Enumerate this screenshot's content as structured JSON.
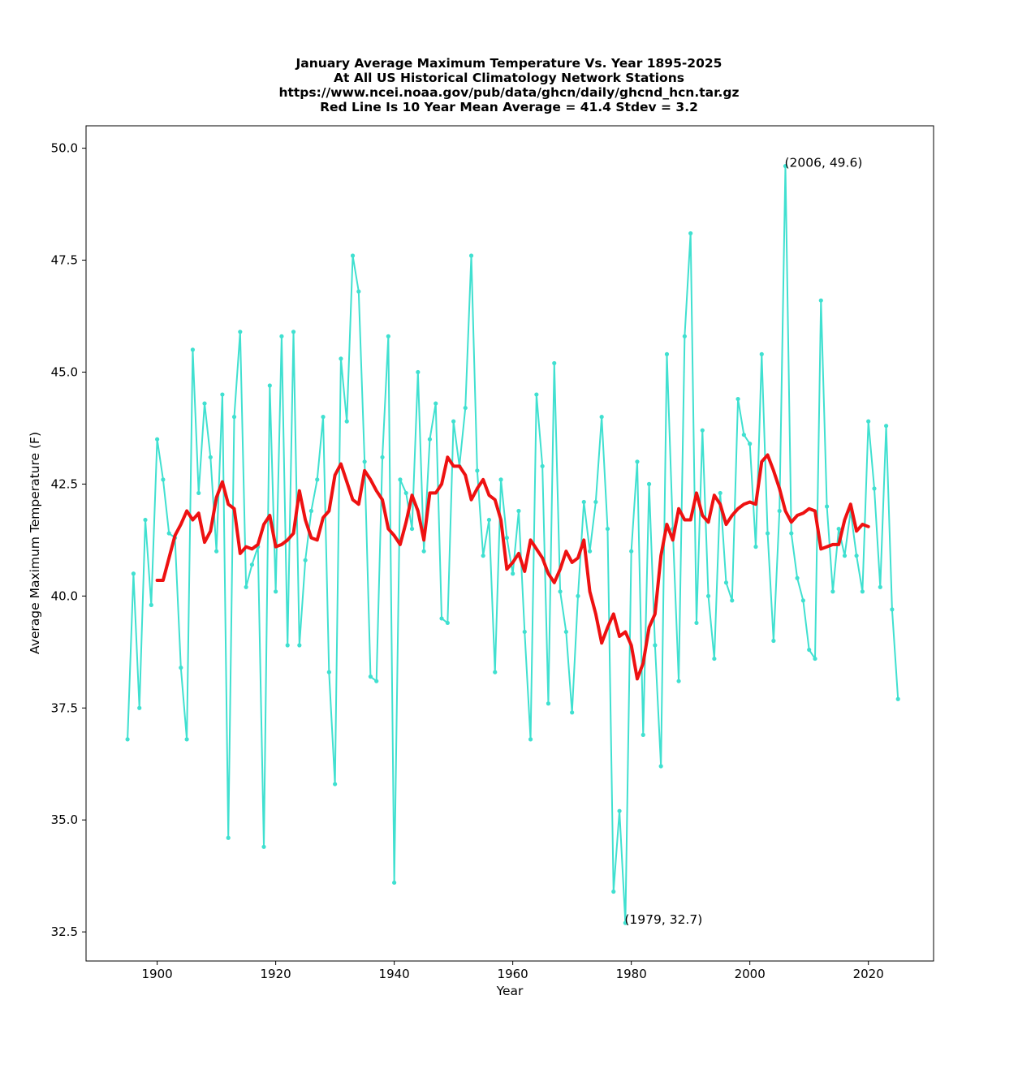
{
  "chart_data": {
    "type": "line",
    "title_lines": [
      "January Average Maximum Temperature Vs. Year 1895-2025",
      "At All US Historical Climatology Network Stations",
      "https://www.ncei.noaa.gov/pub/data/ghcn/daily/ghcnd_hcn.tar.gz",
      "Red Line Is 10 Year Mean  Average = 41.4 Stdev = 3.2"
    ],
    "xlabel": "Year",
    "ylabel": "Average Maximum Temperature (F)",
    "xlim": [
      1888,
      2031
    ],
    "ylim": [
      31.85,
      50.5
    ],
    "xticks": [
      1900,
      1920,
      1940,
      1960,
      1980,
      2000,
      2020
    ],
    "yticks": [
      32.5,
      35.0,
      37.5,
      40.0,
      42.5,
      45.0,
      47.5,
      50.0
    ],
    "grid": false,
    "colors": {
      "annual": "#40e0d0",
      "mean": "#ee1111"
    },
    "series": [
      {
        "x_start": 1895,
        "values": [
          36.8,
          40.5,
          37.5,
          41.7,
          39.8,
          43.5,
          42.6,
          41.4,
          41.3,
          38.4,
          36.8,
          45.5,
          42.3,
          44.3,
          43.1,
          41.0,
          44.5,
          34.6,
          44.0,
          45.9,
          40.2,
          40.7,
          41.1,
          34.4,
          44.7,
          40.1,
          45.8,
          38.9,
          45.9,
          38.9,
          40.8,
          41.9,
          42.6,
          44.0,
          38.3,
          35.8,
          45.3,
          43.9,
          47.6,
          46.8,
          43.0,
          38.2,
          38.1,
          43.1,
          45.8,
          33.6,
          42.6,
          42.3,
          41.5,
          45.0,
          41.0,
          43.5,
          44.3,
          39.5,
          39.4,
          43.9,
          42.9,
          44.2,
          47.6,
          42.8,
          40.9,
          41.7,
          38.3,
          42.6,
          41.3,
          40.5,
          41.9,
          39.2,
          36.8,
          44.5,
          42.9,
          37.6,
          45.2,
          40.1,
          39.2,
          37.4,
          40.0,
          42.1,
          41.0,
          42.1,
          44.0,
          41.5,
          33.4,
          35.2,
          32.7,
          41.0,
          43.0,
          36.9,
          42.5,
          38.9,
          36.2,
          45.4,
          41.5,
          38.1,
          45.8,
          48.1,
          39.4,
          43.7,
          40.0,
          38.6,
          42.3,
          40.3,
          39.9,
          44.4,
          43.6,
          43.4,
          41.1,
          45.4,
          41.4,
          39.0,
          41.9,
          49.6,
          41.4,
          40.4,
          39.9,
          38.8,
          38.6,
          46.6,
          42.0,
          40.1,
          41.5,
          40.9,
          41.9,
          40.9,
          40.1,
          43.9,
          42.4,
          40.2,
          43.8,
          39.7,
          37.7
        ]
      },
      {
        "x_start": 1900,
        "values": [
          40.35,
          40.35,
          40.85,
          41.35,
          41.6,
          41.9,
          41.7,
          41.85,
          41.2,
          41.45,
          42.2,
          42.55,
          42.05,
          41.95,
          40.95,
          41.1,
          41.05,
          41.15,
          41.6,
          41.8,
          41.1,
          41.15,
          41.25,
          41.4,
          42.35,
          41.7,
          41.3,
          41.25,
          41.75,
          41.9,
          42.7,
          42.95,
          42.55,
          42.15,
          42.05,
          42.8,
          42.6,
          42.35,
          42.15,
          41.5,
          41.35,
          41.15,
          41.65,
          42.25,
          41.9,
          41.25,
          42.3,
          42.3,
          42.5,
          43.1,
          42.9,
          42.9,
          42.7,
          42.15,
          42.4,
          42.6,
          42.25,
          42.15,
          41.7,
          40.6,
          40.75,
          40.95,
          40.55,
          41.25,
          41.05,
          40.85,
          40.5,
          40.3,
          40.6,
          41.0,
          40.75,
          40.85,
          41.25,
          40.1,
          39.6,
          38.95,
          39.3,
          39.6,
          39.1,
          39.2,
          38.9,
          38.15,
          38.5,
          39.3,
          39.6,
          40.9,
          41.6,
          41.25,
          41.95,
          41.7,
          41.7,
          42.3,
          41.8,
          41.65,
          42.25,
          42.05,
          41.6,
          41.8,
          41.95,
          42.05,
          42.1,
          42.05,
          43.0,
          43.15,
          42.8,
          42.4,
          41.9,
          41.65,
          41.8,
          41.85,
          41.95,
          41.9,
          41.05,
          41.1,
          41.15,
          41.15,
          41.7,
          42.05,
          41.45,
          41.6,
          41.55
        ]
      }
    ],
    "annotations": [
      {
        "text": "(2006, 49.6)",
        "x": 2006,
        "y": 49.6
      },
      {
        "text": "(1979, 32.7)",
        "x": 1979,
        "y": 32.7
      }
    ]
  }
}
